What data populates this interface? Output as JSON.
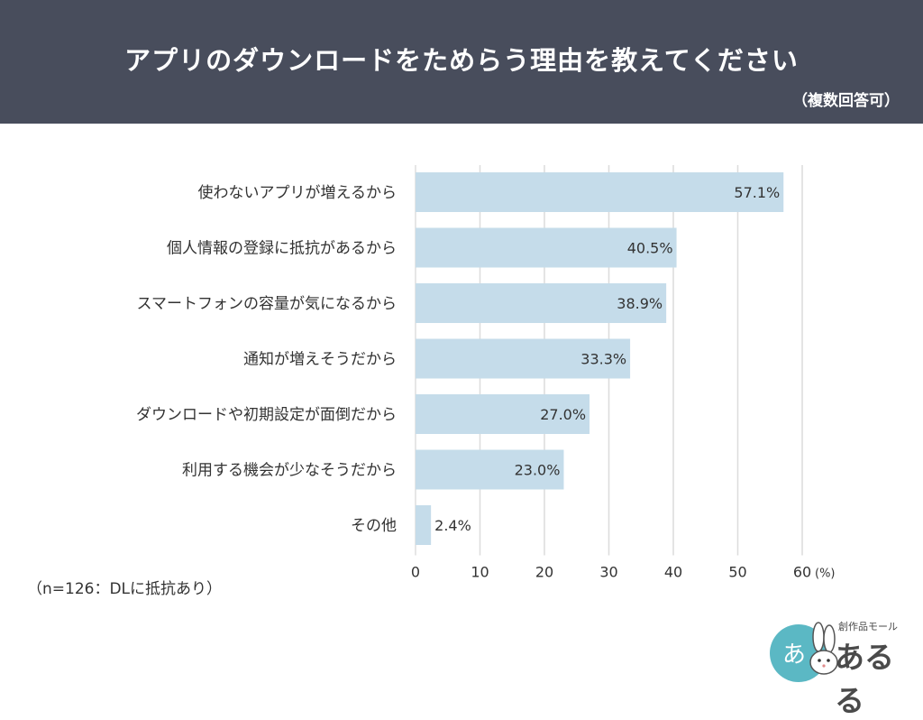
{
  "header": {
    "title": "アプリのダウンロードをためらう理由を教えてください",
    "subtitle": "（複数回答可）"
  },
  "footnote": "（n=126：DLに抵抗あり）",
  "logo": {
    "wordmark": "あるる",
    "tagline": "創作品モール",
    "icon": "rabbit-logo-icon"
  },
  "colors": {
    "header_bg": "#484d5c",
    "bar": "#c5dcea",
    "grid": "#dcdcdc",
    "text": "#333333",
    "logo_circle": "#5bb8c4"
  },
  "chart_data": {
    "type": "bar",
    "orientation": "horizontal",
    "categories": [
      "使わないアプリが増えるから",
      "個人情報の登録に抵抗があるから",
      "スマートフォンの容量が気になるから",
      "通知が増えそうだから",
      "ダウンロードや初期設定が面倒だから",
      "利用する機会が少なそうだから",
      "その他"
    ],
    "values": [
      57.1,
      40.5,
      38.9,
      33.3,
      27.0,
      23.0,
      2.4
    ],
    "value_labels": [
      "57.1%",
      "40.5%",
      "38.9%",
      "33.3%",
      "27.0%",
      "23.0%",
      "2.4%"
    ],
    "xticks": [
      "0",
      "10",
      "20",
      "30",
      "40",
      "50",
      "60"
    ],
    "xunit": "(%)",
    "xlim": [
      0,
      60
    ],
    "grid": true
  }
}
